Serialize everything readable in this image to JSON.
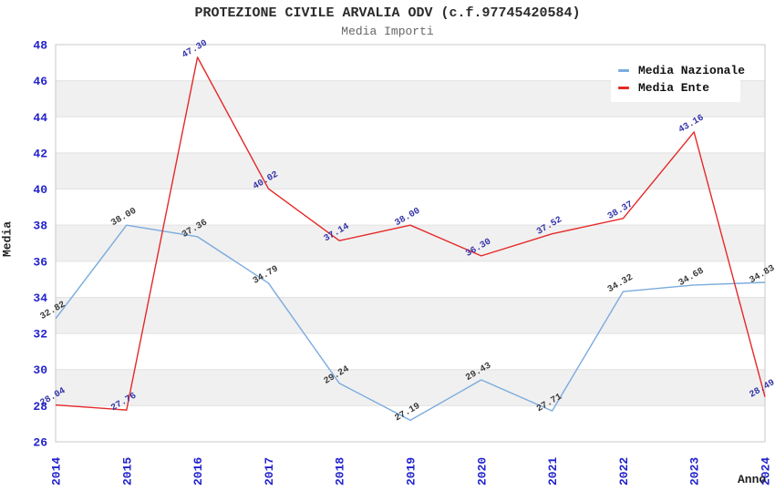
{
  "header": {
    "title": "PROTEZIONE CIVILE ARVALIA ODV (c.f.97745420584)",
    "subtitle": "Media Importi"
  },
  "colors": {
    "nazionale_line": "#7aabde",
    "ente_line": "#e62828",
    "tick_label": "#2222cc",
    "nazionale_value_label": "#3a3a3a",
    "ente_value_label": "#3333aa",
    "band_gray": "#f0f0f0",
    "grid_line": "#e2e2e2",
    "plot_border": "#c8c8c8"
  },
  "chart_data": {
    "type": "line",
    "title": "PROTEZIONE CIVILE ARVALIA ODV (c.f.97745420584)",
    "subtitle": "Media Importi",
    "xlabel": "Anno",
    "ylabel": "Media",
    "x": [
      2014,
      2015,
      2016,
      2017,
      2018,
      2019,
      2020,
      2021,
      2022,
      2023,
      2024
    ],
    "ylim": [
      26,
      48
    ],
    "ytick_step": 2,
    "grid": "horizontal-bands-alternating",
    "legend_position": "top-right",
    "series": [
      {
        "name": "Media Nazionale",
        "color": "#7aabde",
        "label_color": "#3a3a3a",
        "values": [
          32.82,
          38.0,
          37.36,
          34.79,
          29.24,
          27.19,
          29.43,
          27.71,
          34.32,
          34.68,
          34.83
        ]
      },
      {
        "name": "Media Ente",
        "color": "#e62828",
        "label_color": "#3333aa",
        "values": [
          28.04,
          27.76,
          47.3,
          40.02,
          37.14,
          38.0,
          36.3,
          37.52,
          38.37,
          43.16,
          28.49
        ]
      }
    ]
  }
}
